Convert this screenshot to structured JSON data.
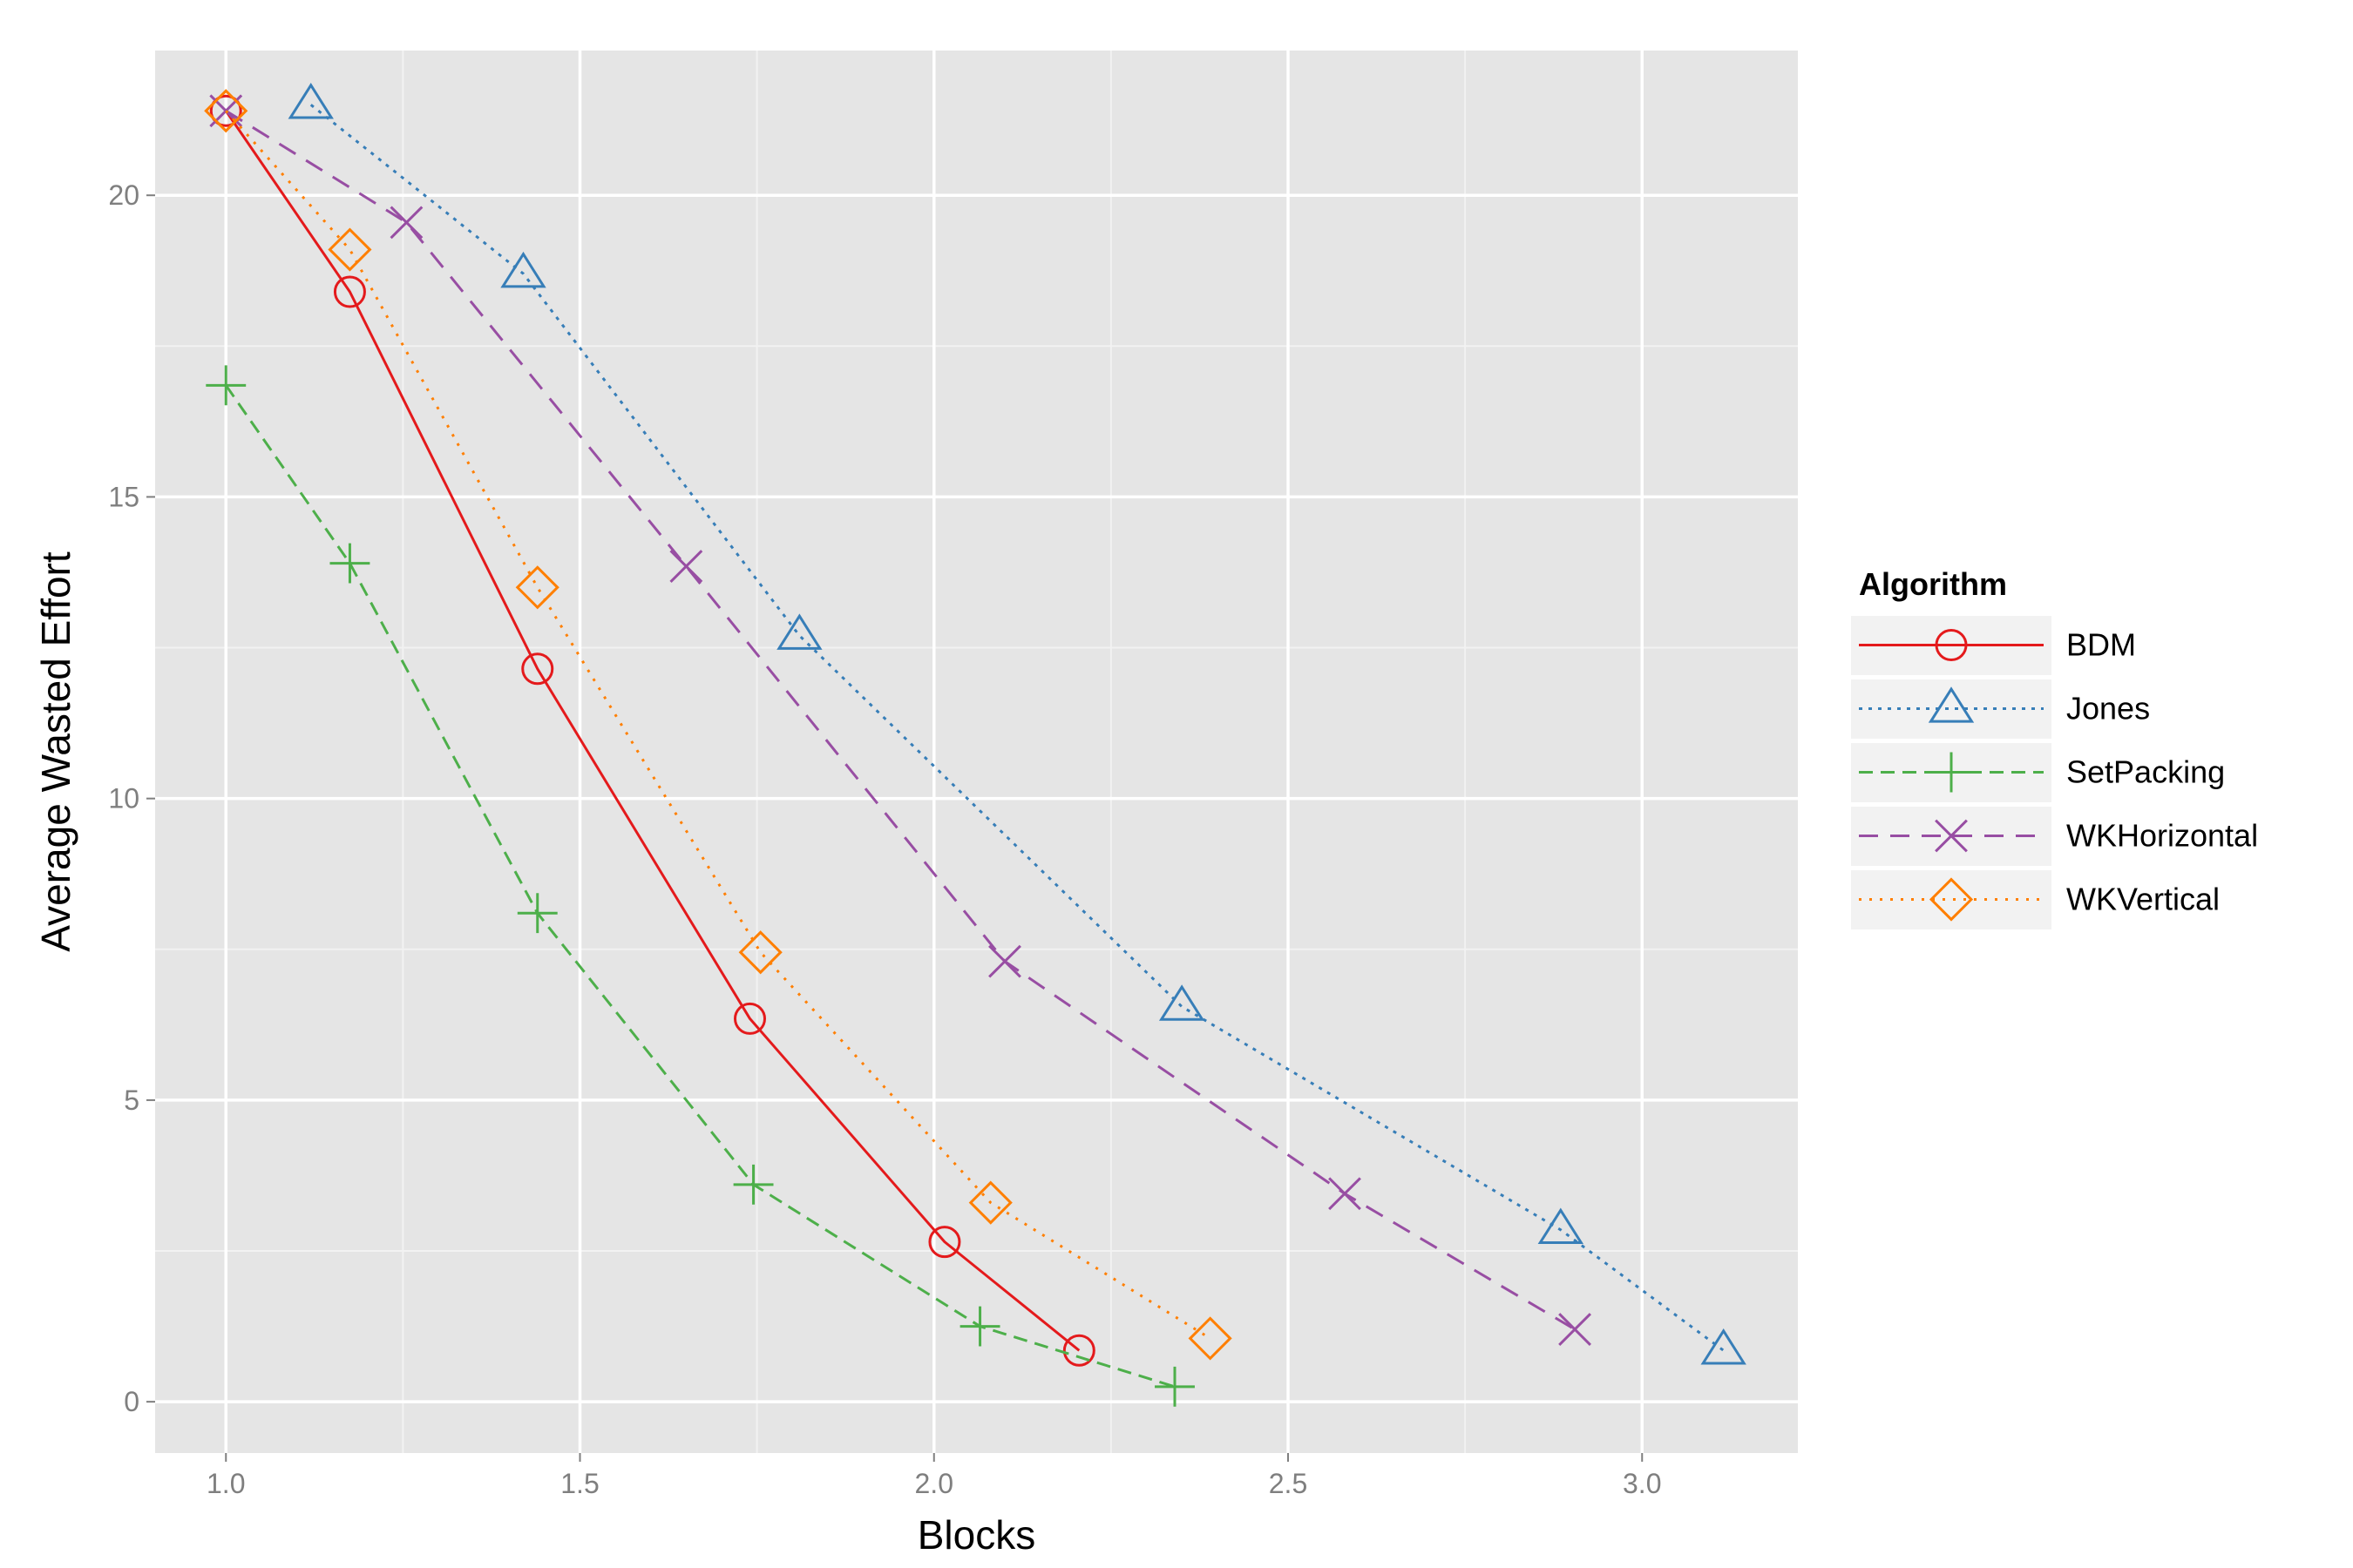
{
  "chart_data": {
    "type": "line",
    "title": "",
    "xlabel": "Blocks",
    "ylabel": "Average Wasted Effort",
    "xlim": [
      0.9,
      3.22
    ],
    "ylim": [
      -0.85,
      22.4
    ],
    "x_ticks": [
      1.0,
      1.5,
      2.0,
      2.5,
      3.0
    ],
    "x_tick_labels": [
      "1.0",
      "1.5",
      "2.0",
      "2.5",
      "3.0"
    ],
    "y_ticks": [
      0,
      5,
      10,
      15,
      20
    ],
    "y_tick_labels": [
      "0",
      "5",
      "10",
      "15",
      "20"
    ],
    "x_minor": [
      1.25,
      1.75,
      2.25,
      2.75
    ],
    "y_minor": [
      2.5,
      7.5,
      12.5,
      17.5
    ],
    "grid": true,
    "panel_background": "#e5e5e5",
    "legend": {
      "title": "Algorithm",
      "position": "right"
    },
    "series": [
      {
        "name": "BDM",
        "color": "#e41a1c",
        "dash": "solid",
        "marker": "circle",
        "x": [
          1.0,
          1.175,
          1.44,
          1.74,
          2.015,
          2.205
        ],
        "y": [
          21.4,
          18.4,
          12.15,
          6.35,
          2.65,
          0.85
        ]
      },
      {
        "name": "Jones",
        "color": "#377eb8",
        "dash": "dotted",
        "marker": "triangle",
        "x": [
          1.12,
          1.42,
          1.81,
          2.35,
          2.885,
          3.115
        ],
        "y": [
          21.5,
          18.7,
          12.7,
          6.55,
          2.85,
          0.85
        ]
      },
      {
        "name": "SetPacking",
        "color": "#4daf4a",
        "dash": "dashed",
        "marker": "plus",
        "x": [
          1.0,
          1.175,
          1.44,
          1.745,
          2.065,
          2.34
        ],
        "y": [
          16.85,
          13.9,
          8.1,
          3.6,
          1.25,
          0.25
        ]
      },
      {
        "name": "WKHorizontal",
        "color": "#984ea3",
        "dash": "longdash",
        "marker": "cross",
        "x": [
          1.0,
          1.255,
          1.65,
          2.1,
          2.58,
          2.905
        ],
        "y": [
          21.4,
          19.55,
          13.85,
          7.3,
          3.45,
          1.2
        ]
      },
      {
        "name": "WKVertical",
        "color": "#ff7f00",
        "dash": "dotdense",
        "marker": "diamond",
        "x": [
          1.0,
          1.175,
          1.44,
          1.755,
          2.08,
          2.39
        ],
        "y": [
          21.4,
          19.1,
          13.5,
          7.45,
          3.3,
          1.05
        ]
      }
    ]
  }
}
